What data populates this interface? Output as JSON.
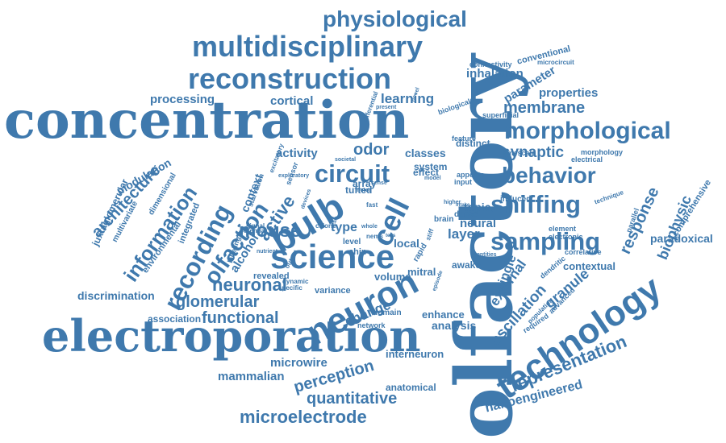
{
  "palette": {
    "main": "#3f79ad",
    "background": "#ffffff"
  },
  "words": [
    "olfactory",
    "concentration",
    "electroporation",
    "science",
    "neuron",
    "technology",
    "bulb",
    "multidisciplinary",
    "reconstruction",
    "morphological",
    "sampling",
    "recording",
    "physiological",
    "cell",
    "circuit",
    "behavior",
    "sniffing",
    "olfaction",
    "information",
    "mouse",
    "microelectrode",
    "neuronal",
    "representation",
    "functional",
    "glomerular",
    "quantitative",
    "perception",
    "architecture",
    "response",
    "membrane",
    "active",
    "oscillation",
    "biophysic",
    "learning",
    "processing",
    "cortical",
    "properties",
    "parameter",
    "inhalation",
    "activity",
    "odor",
    "synaptic",
    "external",
    "granule",
    "nanoengineered",
    "mammalian",
    "microwire",
    "interneuron",
    "discrimination",
    "association",
    "change",
    "anatomical",
    "analysis",
    "paradoxical",
    "context",
    "alcohol",
    "tufted",
    "type",
    "topic",
    "neural",
    "layer",
    "local",
    "volume",
    "single",
    "enhance",
    "contextual",
    "modulation",
    "juxtaglomerular",
    "classes",
    "distinct",
    "system",
    "effect",
    "array",
    "revealed",
    "variance",
    "conventional",
    "connectivity",
    "microcircuit",
    "superficial",
    "morphology",
    "timescale",
    "electrical",
    "comprehensive",
    "parallel",
    "correlative",
    "element",
    "electronic",
    "dendritic",
    "induced",
    "technique",
    "environmental",
    "multivariate",
    "dimensional",
    "integrated",
    "labeling",
    "nutrient",
    "signal",
    "dynamic",
    "output",
    "mitral",
    "awake",
    "brain",
    "dense",
    "chip",
    "domain",
    "network",
    "rapid",
    "specific",
    "population",
    "advanced",
    "required",
    "fast",
    "societal",
    "excitatory",
    "biological",
    "differential",
    "present",
    "novel",
    "feature",
    "appetite",
    "input",
    "potential",
    "starvation",
    "exploratory",
    "sensor",
    "whole",
    "level",
    "calorie",
    "episode",
    "entities",
    "higher",
    "intake",
    "nems",
    "scale",
    "stiff",
    "tens",
    "devices",
    "model",
    "sense",
    "motor"
  ]
}
